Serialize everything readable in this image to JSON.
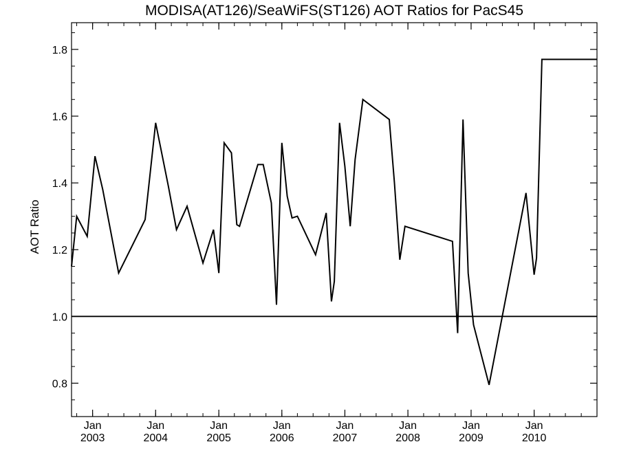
{
  "chart_data": {
    "type": "line",
    "title": "MODISA(AT126)/SeaWiFS(ST126)  AOT Ratios for PacS45",
    "xlabel": "",
    "ylabel": "AOT Ratio",
    "ylim": [
      0.7,
      1.88
    ],
    "yticks": [
      "0.8",
      "1.0",
      "1.2",
      "1.4",
      "1.6",
      "1.8"
    ],
    "xlim": [
      "2002-09-01",
      "2010-12-31"
    ],
    "xticks": [
      {
        "date": "2003-01-01",
        "month": "Jan",
        "year": "2003"
      },
      {
        "date": "2004-01-01",
        "month": "Jan",
        "year": "2004"
      },
      {
        "date": "2005-01-01",
        "month": "Jan",
        "year": "2005"
      },
      {
        "date": "2006-01-01",
        "month": "Jan",
        "year": "2006"
      },
      {
        "date": "2007-01-01",
        "month": "Jan",
        "year": "2007"
      },
      {
        "date": "2008-01-01",
        "month": "Jan",
        "year": "2008"
      },
      {
        "date": "2009-01-01",
        "month": "Jan",
        "year": "2009"
      },
      {
        "date": "2010-01-01",
        "month": "Jan",
        "year": "2010"
      }
    ],
    "reference_line": 1.0,
    "grid": false,
    "series": [
      {
        "x": [
          "2002-09-01",
          "2002-10-01",
          "2002-12-01",
          "2003-01-15",
          "2003-03-01",
          "2003-06-01",
          "2003-11-01",
          "2004-01-01",
          "2004-03-15",
          "2004-05-01",
          "2004-07-01",
          "2004-10-01",
          "2004-12-01",
          "2005-01-01",
          "2005-02-01",
          "2005-03-15",
          "2005-04-15",
          "2005-05-01",
          "2005-08-15",
          "2005-09-15",
          "2005-11-01",
          "2005-12-01",
          "2006-01-01",
          "2006-02-01",
          "2006-03-01",
          "2006-04-01",
          "2006-07-15",
          "2006-09-15",
          "2006-10-15",
          "2006-11-01",
          "2006-12-01",
          "2007-01-01",
          "2007-02-01",
          "2007-03-01",
          "2007-04-15",
          "2007-09-15",
          "2007-10-15",
          "2007-11-15",
          "2007-12-15",
          "2008-09-15",
          "2008-10-15",
          "2008-11-15",
          "2008-12-15",
          "2009-01-15",
          "2009-04-15",
          "2009-11-15",
          "2010-01-01",
          "2010-01-15",
          "2010-02-15",
          "2010-03-01",
          "2010-03-15",
          "2010-08-15",
          "2010-11-01",
          "2010-12-31"
        ],
        "y": [
          1.15,
          1.3,
          1.24,
          1.48,
          1.38,
          1.13,
          1.29,
          1.58,
          1.39,
          1.26,
          1.33,
          1.16,
          1.26,
          1.13,
          1.52,
          1.49,
          1.275,
          1.27,
          1.455,
          1.455,
          1.34,
          1.035,
          1.52,
          1.36,
          1.295,
          1.3,
          1.185,
          1.31,
          1.045,
          1.105,
          1.58,
          1.45,
          1.27,
          1.47,
          1.65,
          1.59,
          1.4,
          1.17,
          1.27,
          1.225,
          0.95,
          1.59,
          1.13,
          0.975,
          0.795,
          1.37,
          1.125,
          1.175,
          1.77,
          1.77,
          1.77,
          1.77,
          1.77,
          1.77
        ]
      }
    ]
  }
}
